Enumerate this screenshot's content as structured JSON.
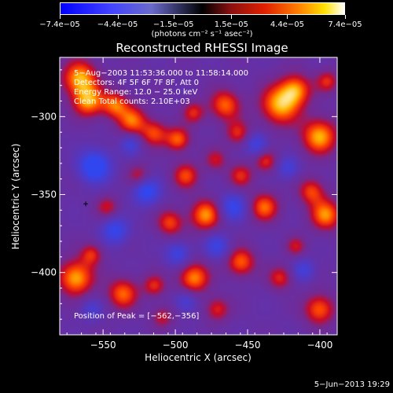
{
  "chart_data": {
    "type": "heatmap",
    "title": "Reconstructed RHESSI Image",
    "xlabel": "Heliocentric X (arcsec)",
    "ylabel": "Heliocentric Y (arcsec)",
    "xlim": [
      -580,
      -388
    ],
    "ylim": [
      -440,
      -262
    ],
    "x_ticks": [
      -550,
      -500,
      -450,
      -400
    ],
    "y_ticks": [
      -300,
      -350,
      -400
    ],
    "x_tick_labels": [
      "−550",
      "−500",
      "−450",
      "−400"
    ],
    "y_tick_labels": [
      "−300",
      "−350",
      "−400"
    ],
    "colorbar": {
      "tick_labels": [
        "−7.4e−05",
        "−4.4e−05",
        "−1.5e−05",
        "1.5e−05",
        "4.4e−05",
        "7.4e−05"
      ],
      "tick_values": [
        -7.4e-05,
        -4.4e-05,
        -1.5e-05,
        1.5e-05,
        4.4e-05,
        7.4e-05
      ],
      "range": [
        -7.4e-05,
        7.4e-05
      ],
      "units": "(photons cm⁻² s⁻¹ asec⁻²)"
    },
    "annotations": [
      "5−Aug−2003 11:53:36.000 to 11:58:14.000",
      "Detectors: 4F 5F 6F 7F 8F, Att 0",
      "Energy Range: 12.0 − 25.0 keV",
      "Clean    Total counts: 2.10E+03"
    ],
    "peak_label": "Position of Peak = [−562,−356]",
    "peak": [
      -562,
      -356
    ],
    "colors": {
      "low": "#0000ff",
      "mid": "#000000",
      "high": "#ffffff",
      "map_low": "#3a2fa0",
      "map_mid": "#7a1c6a",
      "map_high": "#fff2a0"
    }
  },
  "timestamp": "5−Jun−2013 19:29"
}
